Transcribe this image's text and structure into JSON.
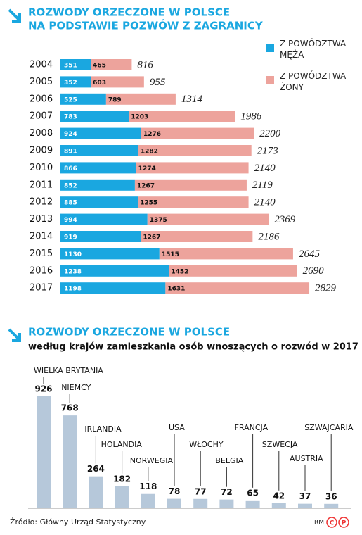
{
  "chart_data": [
    {
      "type": "stacked_barh",
      "title": [
        "ROZWODY ORZECZONE W POLSCE",
        "NA PODSTAWIE POZWÓW Z ZAGRANICY"
      ],
      "categories": [
        "2004",
        "2005",
        "2006",
        "2007",
        "2008",
        "2009",
        "2010",
        "2011",
        "2012",
        "2013",
        "2014",
        "2015",
        "2016",
        "2017"
      ],
      "series": [
        {
          "name": "Z POWÓDZTWA MĘŻA",
          "color": "#1aa7e0",
          "values": [
            351,
            352,
            525,
            783,
            924,
            891,
            866,
            852,
            885,
            994,
            919,
            1130,
            1238,
            1198
          ]
        },
        {
          "name": "Z POWÓDZTWA ŻONY",
          "color": "#eda39c",
          "values": [
            465,
            603,
            789,
            1203,
            1276,
            1282,
            1274,
            1267,
            1255,
            1375,
            1267,
            1515,
            1452,
            1631
          ]
        }
      ],
      "totals": [
        816,
        955,
        1314,
        1986,
        2200,
        2173,
        2140,
        2119,
        2140,
        2369,
        2186,
        2645,
        2690,
        2829
      ]
    },
    {
      "type": "bar",
      "title": "ROZWODY ORZECZONE W POLSCE",
      "subtitle": "według krajów zamieszkania osób wnoszących o rozwód w 2017 r.",
      "categories": [
        "WIELKA BRYTANIA",
        "NIEMCY",
        "IRLANDIA",
        "HOLANDIA",
        "NORWEGIA",
        "USA",
        "WŁOCHY",
        "BELGIA",
        "FRANCJA",
        "SZWECJA",
        "AUSTRIA",
        "SZWAJCARIA"
      ],
      "values": [
        926,
        768,
        264,
        182,
        118,
        78,
        77,
        72,
        65,
        42,
        37,
        36
      ],
      "color": "#b6c8da"
    }
  ],
  "footer": {
    "source": "Źródło: Główny Urząd Statystyczny",
    "credit": "RM",
    "logo": [
      "C",
      "P"
    ]
  }
}
